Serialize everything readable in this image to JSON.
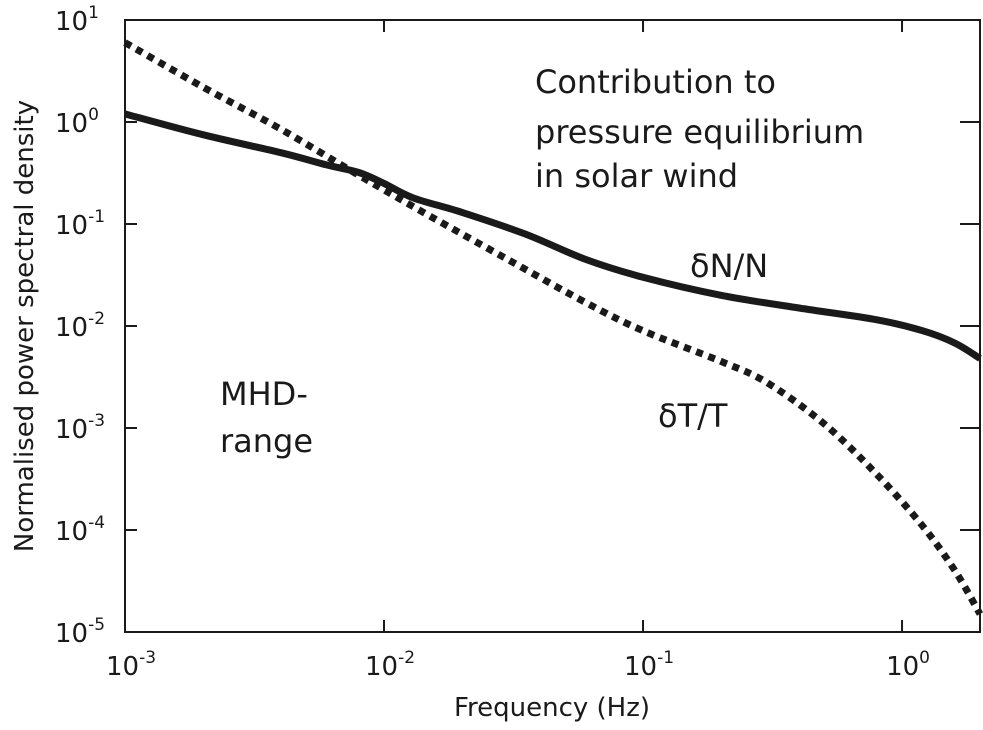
{
  "chart_data": {
    "type": "line",
    "title": "",
    "xlabel": "Frequency (Hz)",
    "ylabel": "Normalised power spectral density",
    "xscale": "log",
    "yscale": "log",
    "xlim": [
      0.001,
      2.0
    ],
    "ylim": [
      1e-05,
      10
    ],
    "grid": false,
    "x_ticks": [
      {
        "value": 0.001,
        "base": "10",
        "exp": "-3"
      },
      {
        "value": 0.01,
        "base": "10",
        "exp": "-2"
      },
      {
        "value": 0.1,
        "base": "10",
        "exp": "-1"
      },
      {
        "value": 1,
        "base": "10",
        "exp": "0"
      }
    ],
    "y_ticks": [
      {
        "value": 10,
        "base": "10",
        "exp": "1"
      },
      {
        "value": 1,
        "base": "10",
        "exp": "0"
      },
      {
        "value": 0.1,
        "base": "10",
        "exp": "-1"
      },
      {
        "value": 0.01,
        "base": "10",
        "exp": "-2"
      },
      {
        "value": 0.001,
        "base": "10",
        "exp": "-3"
      },
      {
        "value": 0.0001,
        "base": "10",
        "exp": "-4"
      },
      {
        "value": 1e-05,
        "base": "10",
        "exp": "-5"
      }
    ],
    "series": [
      {
        "name": "δN/N",
        "style": "solid",
        "color": "#1a1a1a",
        "x": [
          0.001,
          0.002,
          0.004,
          0.006,
          0.008,
          0.01,
          0.013,
          0.02,
          0.035,
          0.06,
          0.1,
          0.2,
          0.4,
          0.8,
          1.2,
          1.6,
          2.0
        ],
        "y": [
          1.2,
          0.75,
          0.5,
          0.38,
          0.32,
          0.25,
          0.18,
          0.13,
          0.08,
          0.045,
          0.03,
          0.02,
          0.015,
          0.0115,
          0.009,
          0.0068,
          0.0048
        ]
      },
      {
        "name": "δT/T",
        "style": "dotted",
        "color": "#1a1a1a",
        "x": [
          0.001,
          0.002,
          0.004,
          0.008,
          0.015,
          0.03,
          0.06,
          0.1,
          0.2,
          0.3,
          0.5,
          0.8,
          1.2,
          1.6,
          2.0
        ],
        "y": [
          6.0,
          2.2,
          0.85,
          0.3,
          0.12,
          0.045,
          0.017,
          0.009,
          0.0045,
          0.0028,
          0.0011,
          0.00035,
          0.00011,
          4e-05,
          1.5e-05
        ]
      }
    ],
    "annotations": [
      {
        "id": "contribution",
        "lines": [
          "Contribution to",
          "pressure equilibrium",
          "in solar wind"
        ]
      },
      {
        "id": "mhd",
        "lines": [
          "MHD-",
          "range"
        ]
      }
    ],
    "series_labels": {
      "dn": "δN/N",
      "dt": "δT/T"
    }
  }
}
